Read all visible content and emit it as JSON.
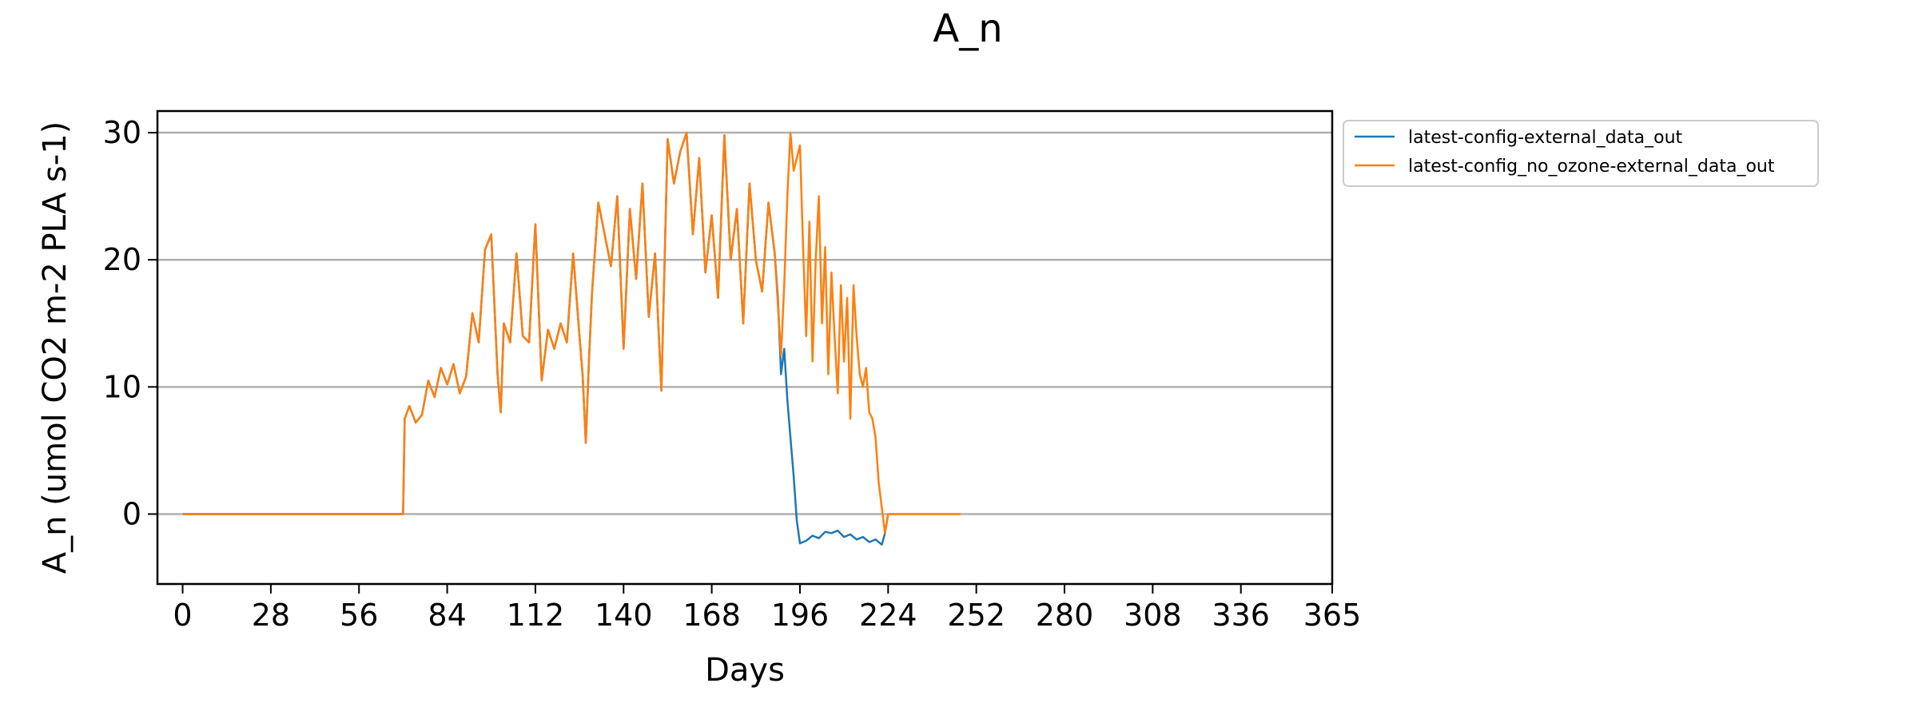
{
  "chart_data": {
    "type": "line",
    "title": "A_n",
    "xlabel": "Days",
    "ylabel": "A_n (umol CO2 m-2 PLA s-1)",
    "xlim": [
      -8,
      365
    ],
    "ylim": [
      -5.5,
      31.7
    ],
    "xticks": [
      0,
      28,
      56,
      84,
      112,
      140,
      168,
      196,
      224,
      252,
      280,
      308,
      336,
      365
    ],
    "yticks": [
      0,
      10,
      20,
      30
    ],
    "grid": "horizontal",
    "legend_position": "outside-top-right",
    "series": [
      {
        "name": "latest-config-external_data_out",
        "color": "#1f77b4",
        "points": [
          [
            0,
            0
          ],
          [
            70,
            0
          ],
          [
            70.5,
            7.5
          ],
          [
            72,
            8.5
          ],
          [
            74,
            7.2
          ],
          [
            76,
            7.8
          ],
          [
            78,
            10.5
          ],
          [
            80,
            9.2
          ],
          [
            82,
            11.5
          ],
          [
            84,
            10.2
          ],
          [
            86,
            11.8
          ],
          [
            88,
            9.5
          ],
          [
            90,
            10.8
          ],
          [
            92,
            15.8
          ],
          [
            94,
            13.5
          ],
          [
            96,
            20.8
          ],
          [
            98,
            22
          ],
          [
            100,
            11
          ],
          [
            101,
            8
          ],
          [
            102,
            15
          ],
          [
            104,
            13.5
          ],
          [
            106,
            20.5
          ],
          [
            108,
            14
          ],
          [
            110,
            13.5
          ],
          [
            112,
            22.8
          ],
          [
            114,
            10.5
          ],
          [
            116,
            14.5
          ],
          [
            118,
            13
          ],
          [
            120,
            15
          ],
          [
            122,
            13.5
          ],
          [
            124,
            20.5
          ],
          [
            126,
            14
          ],
          [
            127,
            11
          ],
          [
            128,
            5.6
          ],
          [
            129,
            12
          ],
          [
            130,
            17.5
          ],
          [
            132,
            24.5
          ],
          [
            134,
            22
          ],
          [
            136,
            19.5
          ],
          [
            138,
            25
          ],
          [
            140,
            13
          ],
          [
            142,
            24
          ],
          [
            144,
            18.5
          ],
          [
            146,
            26
          ],
          [
            148,
            15.5
          ],
          [
            150,
            20.5
          ],
          [
            152,
            9.7
          ],
          [
            154,
            29.5
          ],
          [
            156,
            26
          ],
          [
            158,
            28.5
          ],
          [
            160,
            30
          ],
          [
            162,
            22
          ],
          [
            164,
            28
          ],
          [
            166,
            19
          ],
          [
            168,
            23.5
          ],
          [
            170,
            17
          ],
          [
            172,
            29.8
          ],
          [
            174,
            20
          ],
          [
            176,
            24
          ],
          [
            178,
            15
          ],
          [
            180,
            26
          ],
          [
            182,
            20
          ],
          [
            184,
            17.5
          ],
          [
            186,
            24.5
          ],
          [
            188,
            20.5
          ],
          [
            189,
            17
          ],
          [
            190,
            11
          ],
          [
            191,
            13
          ],
          [
            192,
            9
          ],
          [
            193,
            6
          ],
          [
            194,
            3
          ],
          [
            195,
            -0.5
          ],
          [
            196,
            -2.3
          ],
          [
            198,
            -2.1
          ],
          [
            200,
            -1.7
          ],
          [
            202,
            -1.9
          ],
          [
            204,
            -1.4
          ],
          [
            206,
            -1.5
          ],
          [
            208,
            -1.3
          ],
          [
            210,
            -1.8
          ],
          [
            212,
            -1.6
          ],
          [
            214,
            -2
          ],
          [
            216,
            -1.8
          ],
          [
            218,
            -2.2
          ],
          [
            220,
            -2
          ],
          [
            222,
            -2.4
          ],
          [
            223,
            -1.5
          ],
          [
            224,
            0
          ]
        ]
      },
      {
        "name": "latest-config_no_ozone-external_data_out",
        "color": "#ff7f0e",
        "points": [
          [
            0,
            0
          ],
          [
            70,
            0
          ],
          [
            70.5,
            7.5
          ],
          [
            72,
            8.5
          ],
          [
            74,
            7.2
          ],
          [
            76,
            7.8
          ],
          [
            78,
            10.5
          ],
          [
            80,
            9.2
          ],
          [
            82,
            11.5
          ],
          [
            84,
            10.2
          ],
          [
            86,
            11.8
          ],
          [
            88,
            9.5
          ],
          [
            90,
            10.8
          ],
          [
            92,
            15.8
          ],
          [
            94,
            13.5
          ],
          [
            96,
            20.8
          ],
          [
            98,
            22
          ],
          [
            100,
            11
          ],
          [
            101,
            8
          ],
          [
            102,
            15
          ],
          [
            104,
            13.5
          ],
          [
            106,
            20.5
          ],
          [
            108,
            14
          ],
          [
            110,
            13.5
          ],
          [
            112,
            22.8
          ],
          [
            114,
            10.5
          ],
          [
            116,
            14.5
          ],
          [
            118,
            13
          ],
          [
            120,
            15
          ],
          [
            122,
            13.5
          ],
          [
            124,
            20.5
          ],
          [
            126,
            14
          ],
          [
            127,
            11
          ],
          [
            128,
            5.6
          ],
          [
            129,
            12
          ],
          [
            130,
            17.5
          ],
          [
            132,
            24.5
          ],
          [
            134,
            22
          ],
          [
            136,
            19.5
          ],
          [
            138,
            25
          ],
          [
            140,
            13
          ],
          [
            142,
            24
          ],
          [
            144,
            18.5
          ],
          [
            146,
            26
          ],
          [
            148,
            15.5
          ],
          [
            150,
            20.5
          ],
          [
            152,
            9.7
          ],
          [
            154,
            29.5
          ],
          [
            156,
            26
          ],
          [
            158,
            28.5
          ],
          [
            160,
            30
          ],
          [
            162,
            22
          ],
          [
            164,
            28
          ],
          [
            166,
            19
          ],
          [
            168,
            23.5
          ],
          [
            170,
            17
          ],
          [
            172,
            29.8
          ],
          [
            174,
            20
          ],
          [
            176,
            24
          ],
          [
            178,
            15
          ],
          [
            180,
            26
          ],
          [
            182,
            20
          ],
          [
            184,
            17.5
          ],
          [
            186,
            24.5
          ],
          [
            188,
            20.5
          ],
          [
            190,
            12.5
          ],
          [
            191,
            18
          ],
          [
            192,
            25
          ],
          [
            193,
            30
          ],
          [
            194,
            27
          ],
          [
            196,
            29
          ],
          [
            197,
            21
          ],
          [
            198,
            14
          ],
          [
            199,
            23
          ],
          [
            200,
            12
          ],
          [
            201,
            20
          ],
          [
            202,
            25
          ],
          [
            203,
            15
          ],
          [
            204,
            21
          ],
          [
            205,
            11
          ],
          [
            206,
            19
          ],
          [
            207,
            14
          ],
          [
            208,
            9.5
          ],
          [
            209,
            18
          ],
          [
            210,
            12
          ],
          [
            211,
            17
          ],
          [
            212,
            7.5
          ],
          [
            213,
            18
          ],
          [
            214,
            14
          ],
          [
            215,
            11
          ],
          [
            216,
            10
          ],
          [
            217,
            11.5
          ],
          [
            218,
            8
          ],
          [
            219,
            7.5
          ],
          [
            220,
            6
          ],
          [
            221,
            2.5
          ],
          [
            222,
            0.5
          ],
          [
            223,
            -1.5
          ],
          [
            224,
            0
          ],
          [
            247,
            0
          ]
        ]
      }
    ]
  }
}
